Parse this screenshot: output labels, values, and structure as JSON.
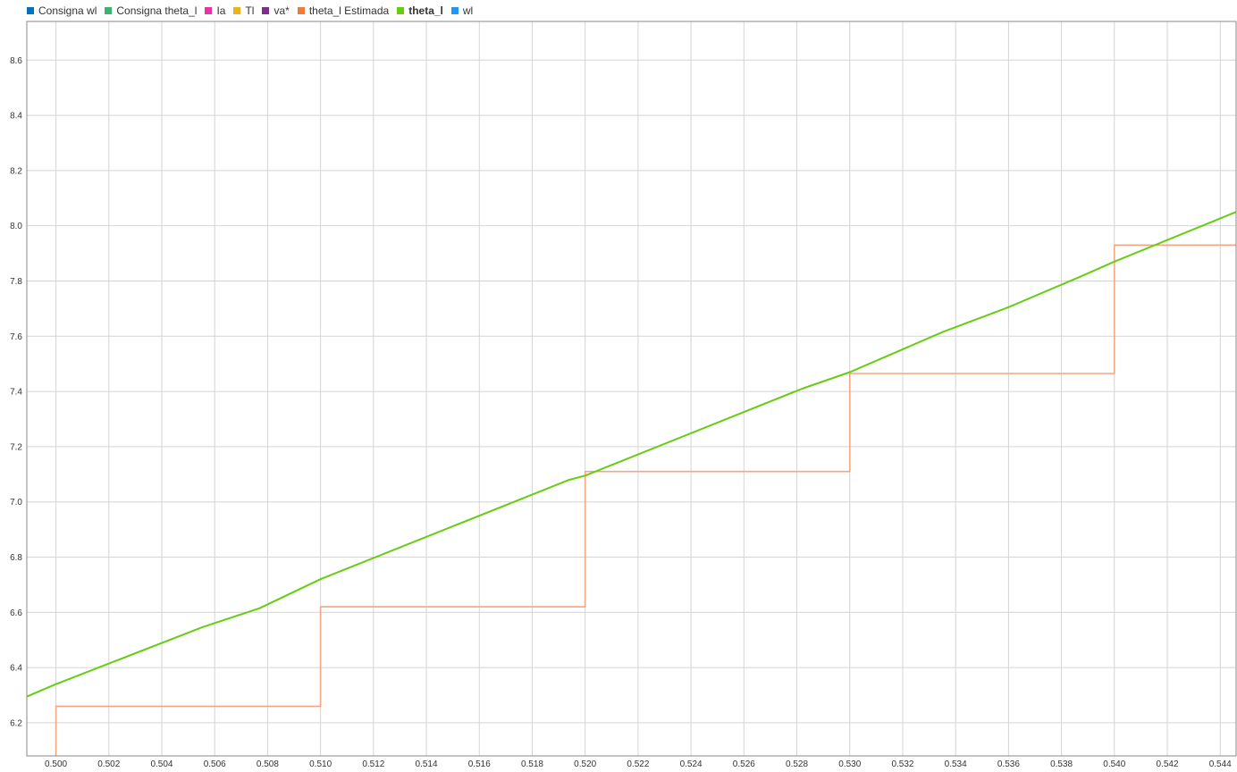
{
  "legend": [
    {
      "label": "Consigna wl",
      "color": "#0072BD",
      "bold": false
    },
    {
      "label": "Consigna theta_l",
      "color": "#3CB371",
      "bold": false
    },
    {
      "label": "Ia",
      "color": "#E833A6",
      "bold": false
    },
    {
      "label": "Tl",
      "color": "#EDB120",
      "bold": false
    },
    {
      "label": "va*",
      "color": "#7E2F8E",
      "bold": false
    },
    {
      "label": "theta_l Estimada",
      "color": "#F07A3A",
      "bold": false
    },
    {
      "label": "theta_l",
      "color": "#66CC14",
      "bold": true
    },
    {
      "label": "wl",
      "color": "#2196F3",
      "bold": false
    }
  ],
  "chart_data": {
    "type": "line",
    "title": "",
    "xlabel": "",
    "ylabel": "",
    "xlim": [
      0.4989,
      0.5446
    ],
    "ylim": [
      6.08,
      8.74
    ],
    "grid": true,
    "legend_position": "top-left",
    "x_ticks": [
      "0.500",
      "0.502",
      "0.504",
      "0.506",
      "0.508",
      "0.510",
      "0.512",
      "0.514",
      "0.516",
      "0.518",
      "0.520",
      "0.522",
      "0.524",
      "0.526",
      "0.528",
      "0.530",
      "0.532",
      "0.534",
      "0.536",
      "0.538",
      "0.540",
      "0.542",
      "0.544"
    ],
    "y_ticks": [
      "6.2",
      "6.4",
      "6.6",
      "6.8",
      "7.0",
      "7.2",
      "7.4",
      "7.6",
      "7.8",
      "8.0",
      "8.2",
      "8.4",
      "8.6"
    ],
    "series": [
      {
        "name": "theta_l Estimada",
        "color": "#F4A582",
        "step": true,
        "x": [
          0.5,
          0.5,
          0.51,
          0.51,
          0.52,
          0.52,
          0.53,
          0.53,
          0.54,
          0.54,
          0.5446
        ],
        "y": [
          6.08,
          6.26,
          6.26,
          6.62,
          6.62,
          7.11,
          7.11,
          7.465,
          7.465,
          7.93,
          7.93
        ]
      },
      {
        "name": "theta_l",
        "color": "#66CC14",
        "step": false,
        "x": [
          0.4989,
          0.5,
          0.5055,
          0.5077,
          0.51,
          0.5194,
          0.52,
          0.5282,
          0.53,
          0.5335,
          0.536,
          0.5387,
          0.54,
          0.5446
        ],
        "y": [
          6.295,
          6.34,
          6.545,
          6.615,
          6.72,
          7.08,
          7.095,
          7.41,
          7.47,
          7.615,
          7.705,
          7.815,
          7.87,
          8.05
        ]
      }
    ]
  }
}
